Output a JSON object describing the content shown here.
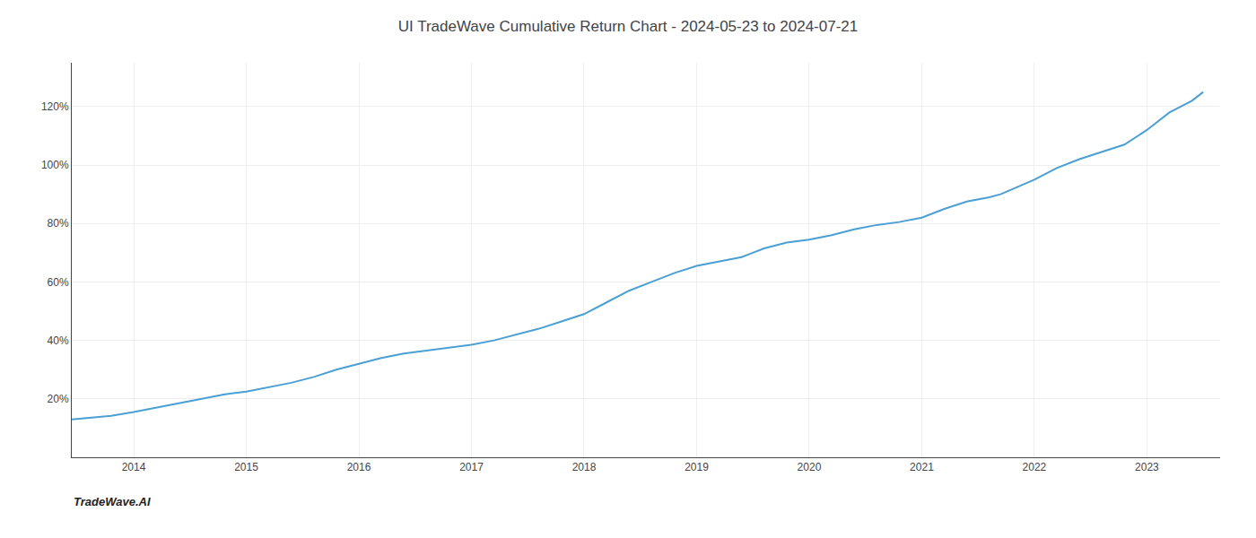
{
  "chart_data": {
    "type": "line",
    "title": "UI TradeWave Cumulative Return Chart - 2024-05-23 to 2024-07-21",
    "x": [
      2013.45,
      2013.6,
      2013.8,
      2014.0,
      2014.2,
      2014.4,
      2014.6,
      2014.8,
      2015.0,
      2015.2,
      2015.4,
      2015.6,
      2015.8,
      2016.0,
      2016.2,
      2016.4,
      2016.6,
      2016.8,
      2017.0,
      2017.2,
      2017.4,
      2017.6,
      2017.8,
      2018.0,
      2018.2,
      2018.4,
      2018.6,
      2018.8,
      2019.0,
      2019.2,
      2019.4,
      2019.5,
      2019.6,
      2019.7,
      2019.8,
      2020.0,
      2020.2,
      2020.4,
      2020.6,
      2020.8,
      2021.0,
      2021.2,
      2021.4,
      2021.6,
      2021.7,
      2022.0,
      2022.2,
      2022.4,
      2022.6,
      2022.8,
      2023.0,
      2023.2,
      2023.4,
      2023.5
    ],
    "values": [
      13,
      13.5,
      14.2,
      15.5,
      17,
      18.5,
      20,
      21.5,
      22.5,
      24,
      25.5,
      27.5,
      30,
      32,
      34,
      35.5,
      36.5,
      37.5,
      38.5,
      40,
      42,
      44,
      46.5,
      49,
      53,
      57,
      60,
      63,
      65.5,
      67,
      68.5,
      70,
      71.5,
      72.5,
      73.5,
      74.5,
      76,
      78,
      79.5,
      80.5,
      82,
      85,
      87.5,
      89,
      90,
      95,
      99,
      102,
      104.5,
      107,
      112,
      118,
      122,
      125
    ],
    "color": "#4a9fd4",
    "xlim": [
      2013.45,
      2023.65
    ],
    "ylim": [
      0,
      135
    ],
    "xticks": [
      2014,
      2015,
      2016,
      2017,
      2018,
      2019,
      2020,
      2021,
      2022,
      2023
    ],
    "yticks": [
      {
        "value": 20,
        "label": "20%"
      },
      {
        "value": 40,
        "label": "40%"
      },
      {
        "value": 60,
        "label": "60%"
      },
      {
        "value": 80,
        "label": "80%"
      },
      {
        "value": 100,
        "label": "100%"
      },
      {
        "value": 120,
        "label": "120%"
      }
    ],
    "grid": true,
    "annotations": [
      {
        "text": "TradeWave.AI"
      }
    ]
  }
}
